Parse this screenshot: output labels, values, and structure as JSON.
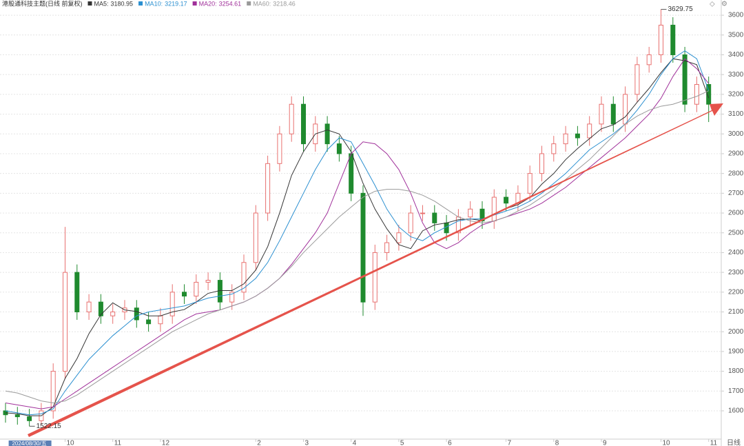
{
  "chart_data": {
    "type": "candlestick",
    "title": "港股通科技主题(日线 前复权)",
    "period_label": "日线",
    "categories": [
      null,
      null,
      "2024/08/30/五",
      null,
      null,
      "10",
      null,
      null,
      null,
      "11",
      null,
      null,
      null,
      "12",
      null,
      null,
      null,
      null,
      null,
      null,
      null,
      "2",
      null,
      null,
      null,
      "3",
      null,
      null,
      null,
      "4",
      null,
      null,
      null,
      "5",
      null,
      null,
      null,
      "6",
      null,
      null,
      null,
      null,
      "7",
      null,
      null,
      null,
      "8",
      null,
      null,
      null,
      "9",
      null,
      null,
      null,
      null,
      "10",
      null,
      null,
      null,
      "11"
    ],
    "open": [
      1600,
      1580,
      1570,
      1550,
      1600,
      1800,
      2300,
      2100,
      2150,
      2080,
      2100,
      2120,
      2060,
      2040,
      2080,
      2200,
      2180,
      2250,
      2260,
      2150,
      2200,
      2350,
      2600,
      2850,
      3000,
      3150,
      2950,
      3050,
      2950,
      2900,
      2700,
      2150,
      2400,
      2450,
      2500,
      2600,
      2600,
      2550,
      2500,
      2580,
      2620,
      2560,
      2680,
      2650,
      2700,
      2800,
      2900,
      2950,
      3000,
      2980,
      3050,
      3150,
      3050,
      3200,
      3350,
      3400,
      3550,
      3400,
      3150,
      3250
    ],
    "high": [
      1640,
      1620,
      1610,
      1640,
      1840,
      2530,
      2340,
      2190,
      2190,
      2140,
      2160,
      2160,
      2100,
      2120,
      2240,
      2240,
      2290,
      2300,
      2300,
      2240,
      2390,
      2640,
      2890,
      3040,
      3190,
      3190,
      3090,
      3090,
      2990,
      2940,
      2740,
      2440,
      2490,
      2540,
      2640,
      2640,
      2640,
      2590,
      2620,
      2660,
      2660,
      2720,
      2720,
      2740,
      2840,
      2940,
      2990,
      3040,
      3040,
      3090,
      3190,
      3190,
      3240,
      3390,
      3440,
      3629.75,
      3590,
      3440,
      3290,
      3290
    ],
    "low": [
      1540,
      1530,
      1522.15,
      1530,
      1560,
      1760,
      2060,
      2060,
      2040,
      2040,
      2060,
      2020,
      2000,
      2000,
      2040,
      2140,
      2140,
      2210,
      2110,
      2110,
      2160,
      2310,
      2560,
      2810,
      2960,
      2910,
      2910,
      2910,
      2860,
      2660,
      2080,
      2110,
      2360,
      2410,
      2460,
      2560,
      2510,
      2460,
      2460,
      2540,
      2520,
      2520,
      2610,
      2610,
      2660,
      2760,
      2860,
      2910,
      2940,
      2940,
      3010,
      3010,
      3010,
      3160,
      3310,
      3360,
      3360,
      3110,
      3110,
      3060
    ],
    "close": [
      1580,
      1570,
      1550,
      1600,
      1800,
      2300,
      2100,
      2150,
      2080,
      2100,
      2120,
      2060,
      2040,
      2080,
      2200,
      2180,
      2250,
      2260,
      2150,
      2200,
      2350,
      2600,
      2850,
      3000,
      3150,
      2950,
      3050,
      2950,
      2900,
      2700,
      2150,
      2400,
      2450,
      2500,
      2600,
      2600,
      2550,
      2500,
      2580,
      2620,
      2560,
      2680,
      2650,
      2700,
      2800,
      2900,
      2950,
      3000,
      2980,
      3050,
      3150,
      3050,
      3200,
      3350,
      3400,
      3550,
      3400,
      3150,
      3250,
      3150
    ],
    "up_color": "#e8706f",
    "down_color": "#1f8a2e",
    "series": [
      {
        "name": "MA5:",
        "legend_value": 3180.95,
        "color": "#333333",
        "values": [
          1590,
          1585,
          1575,
          1575,
          1620,
          1764,
          1864,
          1990,
          2086,
          2146,
          2110,
          2102,
          2080,
          2080,
          2100,
          2112,
          2150,
          2194,
          2208,
          2208,
          2242,
          2312,
          2430,
          2600,
          2790,
          2910,
          3000,
          3020,
          3000,
          2910,
          2750,
          2620,
          2520,
          2440,
          2420,
          2510,
          2540,
          2550,
          2566,
          2570,
          2562,
          2592,
          2622,
          2642,
          2678,
          2746,
          2800,
          2870,
          2926,
          2976,
          3026,
          3046,
          3086,
          3160,
          3230,
          3310,
          3380,
          3370,
          3350,
          3181
        ]
      },
      {
        "name": "MA10:",
        "legend_value": 3219.17,
        "color": "#2a8fd0",
        "values": [
          1600,
          1590,
          1580,
          1585,
          1610,
          1700,
          1780,
          1860,
          1920,
          1980,
          2030,
          2080,
          2100,
          2110,
          2120,
          2130,
          2150,
          2170,
          2180,
          2190,
          2220,
          2270,
          2350,
          2460,
          2580,
          2700,
          2820,
          2920,
          2980,
          2960,
          2850,
          2740,
          2620,
          2530,
          2480,
          2460,
          2500,
          2530,
          2560,
          2570,
          2570,
          2590,
          2610,
          2630,
          2660,
          2700,
          2750,
          2800,
          2860,
          2920,
          2960,
          3000,
          3050,
          3120,
          3200,
          3300,
          3380,
          3420,
          3380,
          3219
        ]
      },
      {
        "name": "MA20:",
        "legend_value": 3254.61,
        "color": "#a0309a",
        "values": [
          1640,
          1630,
          1620,
          1610,
          1620,
          1660,
          1700,
          1740,
          1780,
          1820,
          1860,
          1900,
          1940,
          1980,
          2020,
          2060,
          2090,
          2100,
          2110,
          2130,
          2150,
          2180,
          2220,
          2270,
          2340,
          2420,
          2500,
          2600,
          2750,
          2900,
          2960,
          2950,
          2900,
          2820,
          2700,
          2550,
          2450,
          2420,
          2450,
          2500,
          2540,
          2560,
          2580,
          2600,
          2620,
          2650,
          2690,
          2730,
          2780,
          2830,
          2880,
          2930,
          2980,
          3040,
          3100,
          3180,
          3290,
          3380,
          3330,
          3255
        ]
      },
      {
        "name": "MA60:",
        "legend_value": 3218.46,
        "color": "#9a9a9a",
        "values": [
          1700,
          1690,
          1670,
          1650,
          1640,
          1650,
          1680,
          1720,
          1760,
          1800,
          1840,
          1880,
          1920,
          1960,
          2000,
          2030,
          2060,
          2090,
          2110,
          2130,
          2150,
          2180,
          2220,
          2270,
          2330,
          2400,
          2460,
          2520,
          2580,
          2630,
          2680,
          2710,
          2720,
          2720,
          2710,
          2690,
          2660,
          2620,
          2580,
          2560,
          2550,
          2560,
          2580,
          2610,
          2640,
          2680,
          2720,
          2770,
          2820,
          2870,
          2930,
          2990,
          3050,
          3090,
          3120,
          3140,
          3150,
          3170,
          3190,
          3218
        ]
      }
    ],
    "max_label": "3629.75",
    "min_label": "1522.15",
    "ylim": [
      1457,
      3677
    ],
    "yticks": [
      1600,
      1700,
      1800,
      1900,
      2000,
      2100,
      2200,
      2300,
      2400,
      2500,
      2600,
      2700,
      2800,
      2900,
      3000,
      3100,
      3200,
      3300,
      3400,
      3500,
      3600
    ],
    "grid": true
  }
}
